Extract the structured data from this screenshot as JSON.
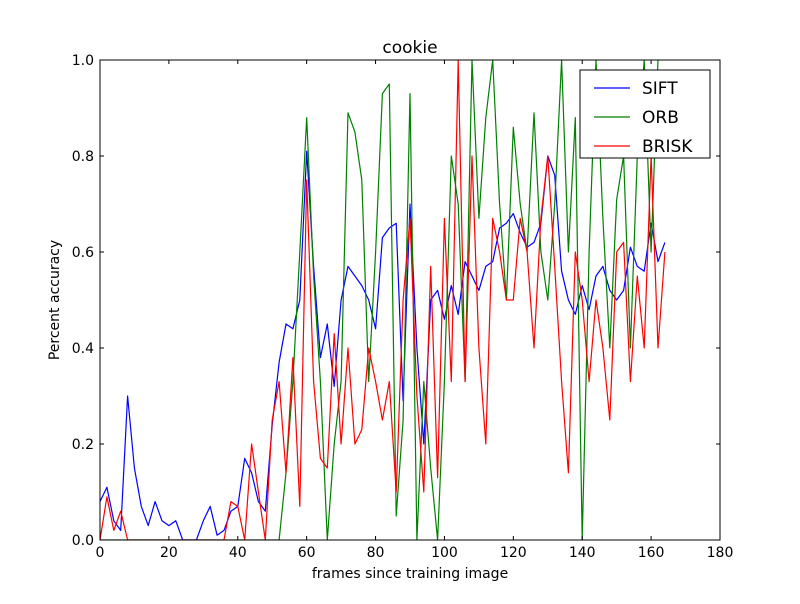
{
  "chart_data": {
    "type": "line",
    "title": "cookie",
    "xlabel": "frames since training image",
    "ylabel": "Percent accuracy",
    "xlim": [
      0,
      180
    ],
    "ylim": [
      0,
      1.0
    ],
    "xticks": [
      0,
      20,
      40,
      60,
      80,
      100,
      120,
      140,
      160,
      180
    ],
    "yticks": [
      0.0,
      0.2,
      0.4,
      0.6,
      0.8,
      1.0
    ],
    "xtick_labels": [
      "0",
      "20",
      "40",
      "60",
      "80",
      "100",
      "120",
      "140",
      "160",
      "180"
    ],
    "ytick_labels": [
      "0.0",
      "0.2",
      "0.4",
      "0.6",
      "0.8",
      "1.0"
    ],
    "grid": false,
    "legend_position": "top-right",
    "series": [
      {
        "name": "SIFT",
        "color": "#0000ff",
        "x": [
          0,
          2,
          4,
          6,
          8,
          10,
          12,
          14,
          16,
          18,
          20,
          22,
          24,
          26,
          28,
          30,
          32,
          34,
          36,
          38,
          40,
          42,
          44,
          46,
          48,
          50,
          52,
          54,
          56,
          58,
          60,
          62,
          64,
          66,
          68,
          70,
          72,
          74,
          76,
          78,
          80,
          82,
          84,
          86,
          88,
          90,
          92,
          94,
          96,
          98,
          100,
          102,
          104,
          106,
          108,
          110,
          112,
          114,
          116,
          118,
          120,
          122,
          124,
          126,
          128,
          130,
          132,
          134,
          136,
          138,
          140,
          142,
          144,
          146,
          148,
          150,
          152,
          154,
          156,
          158,
          160,
          162,
          164
        ],
        "y": [
          0.08,
          0.11,
          0.04,
          0.02,
          0.3,
          0.15,
          0.07,
          0.03,
          0.08,
          0.04,
          0.03,
          0.04,
          0.0,
          0.0,
          0.0,
          0.04,
          0.07,
          0.01,
          0.02,
          0.06,
          0.07,
          0.17,
          0.14,
          0.08,
          0.06,
          0.24,
          0.37,
          0.45,
          0.44,
          0.5,
          0.81,
          0.57,
          0.38,
          0.45,
          0.32,
          0.5,
          0.57,
          0.55,
          0.53,
          0.5,
          0.44,
          0.63,
          0.65,
          0.66,
          0.29,
          0.7,
          0.4,
          0.2,
          0.5,
          0.52,
          0.46,
          0.53,
          0.47,
          0.58,
          0.55,
          0.52,
          0.57,
          0.58,
          0.65,
          0.66,
          0.68,
          0.64,
          0.61,
          0.62,
          0.66,
          0.8,
          0.76,
          0.56,
          0.5,
          0.47,
          0.53,
          0.48,
          0.55,
          0.57,
          0.52,
          0.5,
          0.52,
          0.61,
          0.57,
          0.56,
          0.66,
          0.58,
          0.62
        ]
      },
      {
        "name": "ORB",
        "color": "#008000",
        "x": [
          0,
          4,
          8,
          12,
          16,
          20,
          24,
          28,
          32,
          36,
          40,
          44,
          48,
          50,
          52,
          54,
          56,
          58,
          60,
          62,
          64,
          66,
          68,
          70,
          72,
          74,
          76,
          78,
          80,
          82,
          84,
          86,
          88,
          90,
          92,
          94,
          96,
          98,
          100,
          102,
          104,
          106,
          108,
          110,
          112,
          114,
          116,
          118,
          120,
          122,
          124,
          126,
          128,
          130,
          132,
          134,
          136,
          138,
          140,
          142,
          144,
          146,
          148,
          150,
          152,
          154,
          156,
          158,
          160,
          162
        ],
        "y": [
          0.0,
          0.0,
          0.0,
          0.0,
          0.0,
          0.0,
          0.0,
          0.0,
          0.0,
          0.0,
          0.0,
          0.0,
          0.0,
          0.0,
          0.0,
          0.14,
          0.33,
          0.6,
          0.88,
          0.55,
          0.33,
          0.0,
          0.2,
          0.33,
          0.89,
          0.85,
          0.75,
          0.33,
          0.6,
          0.93,
          0.95,
          0.05,
          0.25,
          0.93,
          0.0,
          0.33,
          0.15,
          0.0,
          0.33,
          0.8,
          0.7,
          0.33,
          1.0,
          0.67,
          0.88,
          1.0,
          0.7,
          0.5,
          0.86,
          0.7,
          0.6,
          0.89,
          0.6,
          0.5,
          0.7,
          1.0,
          0.6,
          0.88,
          0.0,
          0.6,
          1.0,
          0.67,
          0.4,
          0.71,
          0.8,
          0.4,
          0.8,
          1.0,
          0.6,
          1.0
        ]
      },
      {
        "name": "BRISK",
        "color": "#ff0000",
        "x": [
          0,
          2,
          4,
          6,
          8,
          10,
          12,
          14,
          16,
          18,
          20,
          22,
          24,
          26,
          28,
          30,
          32,
          34,
          36,
          38,
          40,
          42,
          44,
          46,
          48,
          50,
          52,
          54,
          56,
          58,
          60,
          62,
          64,
          66,
          68,
          70,
          72,
          74,
          76,
          78,
          80,
          82,
          84,
          86,
          88,
          90,
          92,
          94,
          96,
          98,
          100,
          102,
          104,
          106,
          108,
          110,
          112,
          114,
          116,
          118,
          120,
          122,
          124,
          126,
          128,
          130,
          132,
          134,
          136,
          138,
          140,
          142,
          144,
          146,
          148,
          150,
          152,
          154,
          156,
          158,
          160,
          162,
          164
        ],
        "y": [
          0.0,
          0.09,
          0.02,
          0.06,
          0.0,
          0.0,
          0.0,
          0.0,
          0.0,
          0.0,
          0.0,
          0.0,
          0.0,
          0.0,
          0.0,
          0.0,
          0.0,
          0.0,
          0.0,
          0.08,
          0.07,
          0.0,
          0.2,
          0.1,
          0.0,
          0.25,
          0.33,
          0.14,
          0.38,
          0.07,
          0.75,
          0.33,
          0.17,
          0.15,
          0.43,
          0.2,
          0.4,
          0.2,
          0.23,
          0.4,
          0.33,
          0.25,
          0.33,
          0.1,
          0.5,
          0.67,
          0.3,
          0.1,
          0.57,
          0.13,
          0.67,
          0.33,
          1.0,
          0.33,
          0.8,
          0.4,
          0.2,
          0.67,
          0.6,
          0.5,
          0.5,
          0.67,
          0.6,
          0.4,
          0.67,
          0.8,
          0.57,
          0.33,
          0.14,
          0.6,
          0.5,
          0.33,
          0.5,
          0.4,
          0.25,
          0.6,
          0.62,
          0.33,
          0.55,
          0.4,
          0.8,
          0.4,
          0.6
        ]
      }
    ]
  }
}
